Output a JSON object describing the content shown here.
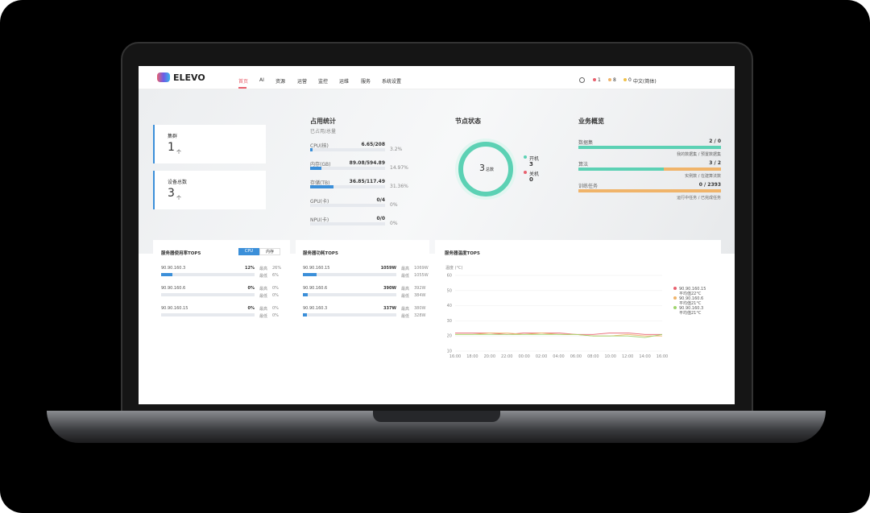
{
  "nav": {
    "logo": "ELEVO",
    "menu": [
      "首页",
      "AI",
      "资源",
      "运营",
      "监控",
      "运维",
      "服务",
      "系统设置"
    ],
    "alerts": [
      "1",
      "8",
      "0"
    ],
    "language": "中文(简体)"
  },
  "cards": [
    {
      "label": "集群",
      "value": "1",
      "unit": "个"
    },
    {
      "label": "设备总数",
      "value": "3",
      "unit": "个"
    }
  ],
  "usage": {
    "title": "占用统计",
    "subtitle": "已占用/总量",
    "rows": [
      {
        "label": "CPU(核)",
        "value": "6.65/208",
        "percent": "3.2%"
      },
      {
        "label": "内存(GB)",
        "value": "89.08/594.89",
        "percent": "14.97%"
      },
      {
        "label": "存储(TB)",
        "value": "36.85/117.49",
        "percent": "31.36%"
      },
      {
        "label": "GPU(卡)",
        "value": "0/4",
        "percent": "0%"
      },
      {
        "label": "NPU(卡)",
        "value": "0/0",
        "percent": "0%"
      }
    ]
  },
  "nodes": {
    "title": "节点状态",
    "total": "3",
    "total_label": "总数",
    "legend": [
      {
        "label": "开机",
        "value": "3"
      },
      {
        "label": "关机",
        "value": "0"
      }
    ]
  },
  "business": {
    "title": "业务概览",
    "rows": [
      {
        "label": "数据集",
        "value": "2 / 0",
        "sub": "我的数据集 / 预置数据集"
      },
      {
        "label": "算法",
        "value": "3 / 2",
        "sub": "实例数 / 在建算法数"
      },
      {
        "label": "训练任务",
        "value": "0 / 2393",
        "sub": "运行中任务 / 已完成任务"
      }
    ]
  },
  "util": {
    "title": "服务器使用率TOP5",
    "tabs": [
      "CPU",
      "内存"
    ],
    "max_label": "最高",
    "min_label": "最低",
    "rows": [
      {
        "ip": "90.90.160.3",
        "value": "12%",
        "max": "26%",
        "min": "6%"
      },
      {
        "ip": "90.90.160.6",
        "value": "0%",
        "max": "0%",
        "min": "0%"
      },
      {
        "ip": "90.90.160.15",
        "value": "0%",
        "max": "0%",
        "min": "0%"
      }
    ]
  },
  "power": {
    "title": "服务器功耗TOP5",
    "max_label": "最高",
    "min_label": "最低",
    "rows": [
      {
        "ip": "90.90.160.15",
        "value": "1059W",
        "max": "1069W",
        "min": "1055W"
      },
      {
        "ip": "90.90.160.6",
        "value": "390W",
        "max": "392W",
        "min": "384W"
      },
      {
        "ip": "90.90.160.3",
        "value": "337W",
        "max": "380W",
        "min": "328W"
      }
    ]
  },
  "chart_data": {
    "type": "line",
    "title": "服务器温度TOP5",
    "y_label": "温度 (°C)",
    "categories": [
      "16:00",
      "18:00",
      "20:00",
      "22:00",
      "00:00",
      "02:00",
      "04:00",
      "06:00",
      "08:00",
      "10:00",
      "12:00",
      "14:00",
      "16:00"
    ],
    "ylim": [
      10,
      60
    ],
    "yticks": [
      10,
      20,
      30,
      40,
      50,
      60
    ],
    "series": [
      {
        "name": "90.90.160.15",
        "avg": "平均值22°C",
        "color": "#e8616f",
        "values": [
          22,
          22,
          22,
          21,
          22,
          22,
          22,
          21,
          21,
          22,
          22,
          21,
          21
        ]
      },
      {
        "name": "90.90.160.6",
        "avg": "平均值21°C",
        "color": "#f0b46a",
        "values": [
          21,
          21,
          22,
          22,
          21,
          22,
          21,
          21,
          20,
          20,
          21,
          20,
          20
        ]
      },
      {
        "name": "90.90.160.3",
        "avg": "平均值21°C",
        "color": "#9ed46c",
        "values": [
          21,
          21,
          21,
          21,
          21,
          21,
          21,
          21,
          20,
          20,
          20,
          19,
          21
        ]
      }
    ]
  }
}
